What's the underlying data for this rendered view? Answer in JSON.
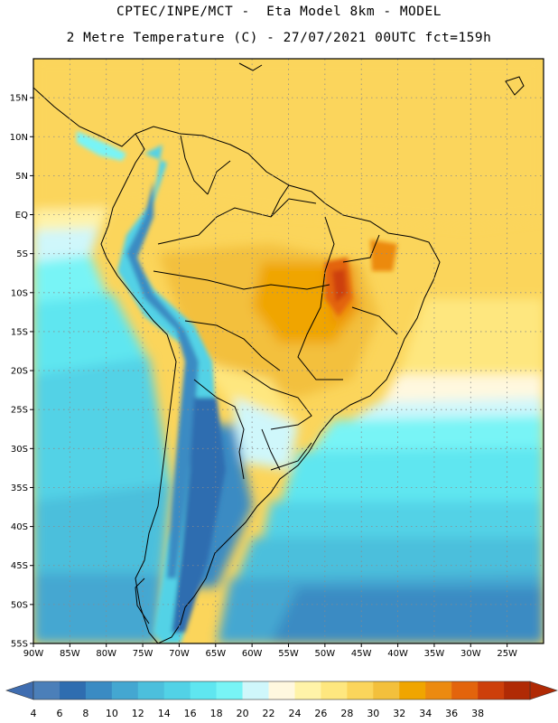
{
  "header": {
    "line1": "CPTEC/INPE/MCT -  Eta Model 8km - MODEL",
    "line2": "2 Metre Temperature (C) - 27/07/2021 00UTC fct=159h"
  },
  "map": {
    "lon_range": [
      -90,
      -20
    ],
    "lat_range": [
      -55,
      20
    ],
    "lat_labels": [
      "15N",
      "10N",
      "5N",
      "EQ",
      "5S",
      "10S",
      "15S",
      "20S",
      "25S",
      "30S",
      "35S",
      "40S",
      "45S",
      "50S",
      "55S"
    ],
    "lat_values": [
      15,
      10,
      5,
      0,
      -5,
      -10,
      -15,
      -20,
      -25,
      -30,
      -35,
      -40,
      -45,
      -50,
      -55
    ],
    "lon_labels": [
      "90W",
      "85W",
      "80W",
      "75W",
      "70W",
      "65W",
      "60W",
      "55W",
      "50W",
      "45W",
      "40W",
      "35W",
      "30W",
      "25W"
    ],
    "lon_values": [
      -90,
      -85,
      -80,
      -75,
      -70,
      -65,
      -60,
      -55,
      -50,
      -45,
      -40,
      -35,
      -30,
      -25
    ]
  },
  "colorbar": {
    "labels": [
      "4",
      "6",
      "8",
      "10",
      "12",
      "14",
      "16",
      "18",
      "20",
      "22",
      "24",
      "26",
      "28",
      "30",
      "32",
      "34",
      "36",
      "38"
    ],
    "colors": [
      "#4b7fb9",
      "#2f6db0",
      "#3a8bc3",
      "#44a7d1",
      "#4cbfdc",
      "#52d2e6",
      "#5fe6f0",
      "#78f4f6",
      "#cff7fb",
      "#fff8df",
      "#fff3a8",
      "#fee77f",
      "#fbd55b",
      "#f3c03c",
      "#f0a500",
      "#ec8a10",
      "#e3640c",
      "#cd3f0a",
      "#b02a05"
    ],
    "left_arrow_color": "#3f6db0",
    "right_arrow_color": "#b02a05"
  }
}
